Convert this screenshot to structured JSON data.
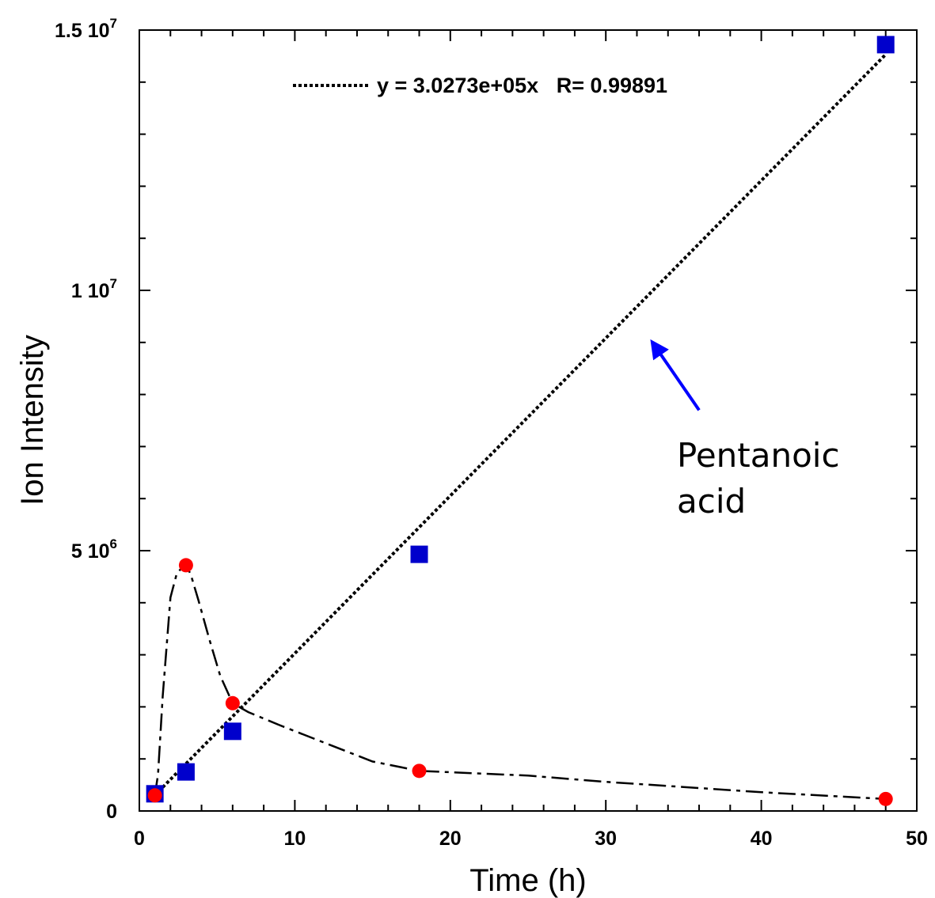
{
  "chart_data": {
    "type": "scatter",
    "title": "",
    "xlabel": "Time (h)",
    "ylabel": "Ion Intensity",
    "xlim": [
      0,
      50
    ],
    "ylim": [
      0,
      15000000
    ],
    "x_ticks": [
      0,
      10,
      20,
      30,
      40,
      50
    ],
    "y_ticks": [
      {
        "value": 0,
        "mantissa": "0",
        "exponent": ""
      },
      {
        "value": 5000000,
        "mantissa": "5 10",
        "exponent": "6"
      },
      {
        "value": 10000000,
        "mantissa": "1 10",
        "exponent": "7"
      },
      {
        "value": 15000000,
        "mantissa": "1.5 10",
        "exponent": "7"
      }
    ],
    "grid": false,
    "series": [
      {
        "marker": "square",
        "color": "#0000cc",
        "x": [
          1,
          3,
          6,
          18,
          48
        ],
        "y": [
          330000,
          750000,
          1530000,
          4930000,
          14720000
        ]
      },
      {
        "marker": "circle",
        "color": "#ff0000",
        "x": [
          1,
          3,
          6,
          18,
          48
        ],
        "y": [
          300000,
          4720000,
          2070000,
          770000,
          230000
        ]
      }
    ],
    "fit_line": {
      "label": "y = 3.0273e+05x   R= 0.99891",
      "slope": 302730,
      "x_range": [
        1,
        48
      ],
      "style": "dotted",
      "color": "#000000"
    },
    "trend_curve": {
      "style": "dashed",
      "color": "#000000",
      "x": [
        1,
        1.2,
        1.5,
        2,
        2.4,
        2.8,
        3,
        3.3,
        3.8,
        4.5,
        5.2,
        6,
        7,
        9,
        12,
        15,
        18,
        25,
        30,
        35,
        40,
        45,
        48
      ],
      "y": [
        300000,
        700000,
        2200000,
        4100000,
        4550000,
        4700000,
        4720000,
        4550000,
        4050000,
        3300000,
        2600000,
        2070000,
        1900000,
        1650000,
        1300000,
        950000,
        770000,
        680000,
        560000,
        460000,
        360000,
        280000,
        230000
      ]
    },
    "annotation": {
      "lines": [
        "Pentanoic",
        "acid"
      ],
      "arrow_color": "#0000ff",
      "arrow_from": [
        36,
        7700000
      ],
      "arrow_to": [
        33,
        9000000
      ]
    }
  }
}
